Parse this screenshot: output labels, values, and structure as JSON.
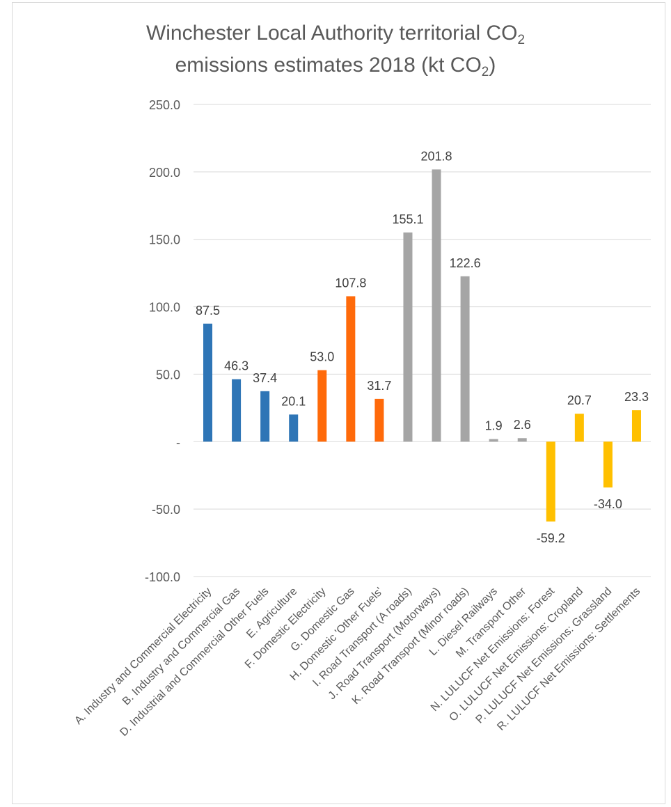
{
  "chart_data": {
    "type": "bar",
    "title": {
      "line1_prefix": "Winchester Local Authority territorial CO",
      "line1_sub": "2",
      "line2_prefix": "emissions estimates 2018 (kt CO",
      "line2_sub": "2",
      "line2_suffix": ")"
    },
    "xlabel": "",
    "ylabel": "",
    "ylim": [
      -100,
      250
    ],
    "yticks": [
      -100,
      -50,
      0,
      50,
      100,
      150,
      200,
      250
    ],
    "ytick_labels": [
      "-100.0",
      "-50.0",
      "-",
      "50.0",
      "100.0",
      "150.0",
      "200.0",
      "250.0"
    ],
    "grid": true,
    "legend": "none",
    "colors": {
      "industry": "#2e75b6",
      "domestic": "#ff6a0a",
      "transport": "#a5a5a5",
      "lulucf": "#ffc000",
      "text": "#404040",
      "tick_text": "#595959",
      "grid": "#d9d9d9"
    },
    "categories": [
      "A. Industry and Commercial Electricity",
      "B. Industry and Commercial Gas",
      "D. Industrial and Commercial Other Fuels",
      "E. Agriculture",
      "F. Domestic Electricity",
      "G. Domestic Gas",
      "H. Domestic 'Other Fuels'",
      "I. Road Transport (A roads)",
      "J. Road Transport (Motorways)",
      "K. Road Transport (Minor roads)",
      "L. Diesel Railways",
      "M. Transport Other",
      "N. LULUCF Net Emissions: Forest",
      "O. LULUCF Net Emissions: Cropland",
      "P. LULUCF Net Emissions: Grassland",
      "R. LULUCF Net Emissions: Settlements"
    ],
    "values": [
      87.5,
      46.3,
      37.4,
      20.1,
      53.0,
      107.8,
      31.7,
      155.1,
      201.8,
      122.6,
      1.9,
      2.6,
      -59.2,
      20.7,
      -34.0,
      23.3
    ],
    "data_labels": [
      "87.5",
      "46.3",
      "37.4",
      "20.1",
      "53.0",
      "107.8",
      "31.7",
      "155.1",
      "201.8",
      "122.6",
      "1.9",
      "2.6",
      "-59.2",
      "20.7",
      "-34.0",
      "23.3"
    ],
    "groups": [
      "industry",
      "industry",
      "industry",
      "industry",
      "domestic",
      "domestic",
      "domestic",
      "transport",
      "transport",
      "transport",
      "transport",
      "transport",
      "lulucf",
      "lulucf",
      "lulucf",
      "lulucf"
    ]
  }
}
